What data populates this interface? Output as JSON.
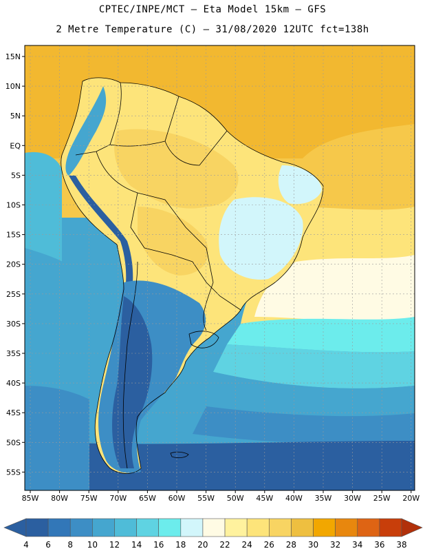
{
  "title_line1": "CPTEC/INPE/MCT –  Eta Model 15km – GFS",
  "title_line2": "2 Metre Temperature (C) – 31/08/2020 12UTC fct=138h",
  "lat_labels": [
    "15N",
    "10N",
    "5N",
    "EQ",
    "5S",
    "10S",
    "15S",
    "20S",
    "25S",
    "30S",
    "35S",
    "40S",
    "45S",
    "50S",
    "55S"
  ],
  "lon_labels": [
    "85W",
    "80W",
    "75W",
    "70W",
    "65W",
    "60W",
    "55W",
    "50W",
    "45W",
    "40W",
    "35W",
    "30W",
    "25W",
    "20W"
  ],
  "colorbar": {
    "labels": [
      "4",
      "6",
      "8",
      "10",
      "12",
      "14",
      "16",
      "18",
      "20",
      "22",
      "24",
      "26",
      "28",
      "30",
      "32",
      "34",
      "36",
      "38"
    ],
    "colors": [
      "#2b5fa0",
      "#3277b8",
      "#3d8ec5",
      "#45a6cf",
      "#4fbcd8",
      "#5fd3e2",
      "#6cecec",
      "#d2f6fb",
      "#fffbe4",
      "#fff29e",
      "#fde47a",
      "#f8d462",
      "#eebf40",
      "#f2a700",
      "#e8870e",
      "#de6414",
      "#c83e0a"
    ],
    "end_low_color": "#2b5fa0",
    "end_high_color": "#b1300a"
  },
  "colors": {
    "ocean_cold": "#2b5fa0",
    "ocean_mid": "#45a6cf",
    "ocean_warm": "#6cecec",
    "land_warm": "#fde47a",
    "land_hot": "#f8d462",
    "tropical_sea": "#f6c84a",
    "gridline": "#9a9a9a",
    "border": "#000000"
  }
}
